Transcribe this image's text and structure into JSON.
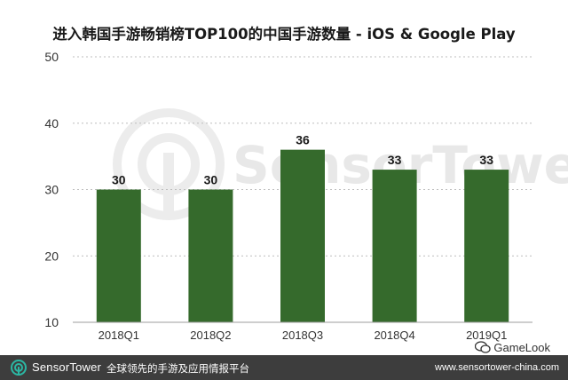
{
  "chart_data": {
    "type": "bar",
    "title": "进入韩国手游畅销榜TOP100的中国手游数量 - iOS & Google Play",
    "categories": [
      "2018Q1",
      "2018Q2",
      "2018Q3",
      "2018Q4",
      "2019Q1"
    ],
    "values": [
      30,
      30,
      36,
      33,
      33
    ],
    "xlabel": "",
    "ylabel": "",
    "ylim": [
      10,
      50
    ],
    "yticks": [
      10,
      20,
      30,
      40,
      50
    ],
    "grid": true,
    "bar_color": "#356a2c"
  },
  "watermark": {
    "text": "SensorTower"
  },
  "footer": {
    "brand": "SensorTower",
    "tagline": "全球领先的手游及应用情报平台",
    "url": "www.sensortower-china.com",
    "background": "#3d3d3d",
    "accent": "#2bb7a3"
  },
  "badge": {
    "text": "GameLook"
  }
}
